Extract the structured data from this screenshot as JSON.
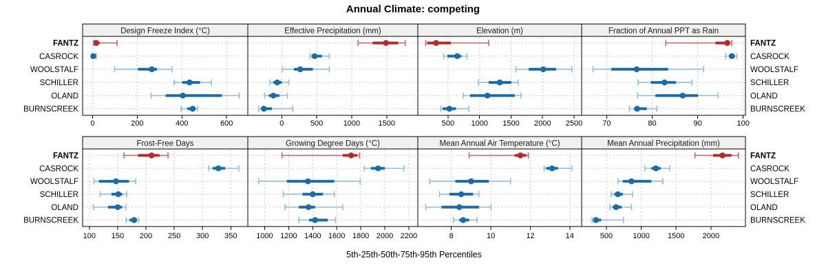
{
  "title": "Annual Climate: competing",
  "footer": "5th-25th-50th-75th-95th Percentiles",
  "colors": {
    "highlight": "#B32B2D",
    "highlight_light": "#C96868",
    "normal": "#1A6BA8",
    "normal_light": "#8FBCDF",
    "panel_header_bg": "#F0F0F0",
    "panel_border": "#000000",
    "grid": "#C9C9C9",
    "text": "#000000"
  },
  "chart_data": {
    "type": "dotplot",
    "subtype": "trellis-percentile-dotplot",
    "grid": "dashed",
    "percentile_labels": [
      "5th",
      "25th",
      "50th",
      "75th",
      "95th"
    ],
    "rows": [
      "FANTZ",
      "CASROCK",
      "WOOLSTALF",
      "SCHILLER",
      "OLAND",
      "BURNSCREEK"
    ],
    "highlighted_row": "FANTZ",
    "panels": [
      {
        "title": "Design Freeze Index (°C)",
        "xlim": [
          -45,
          695
        ],
        "ticks": [
          0,
          200,
          400,
          600
        ],
        "percentiles": [
          [
            5,
            8,
            16,
            31,
            109
          ],
          [
            -5,
            0,
            3,
            8,
            16
          ],
          [
            98,
            203,
            265,
            288,
            355
          ],
          [
            365,
            401,
            434,
            481,
            532
          ],
          [
            262,
            327,
            404,
            579,
            657
          ],
          [
            396,
            424,
            448,
            462,
            471
          ]
        ]
      },
      {
        "title": "Effective Precipitation (mm)",
        "xlim": [
          -485,
          1945
        ],
        "ticks": [
          0,
          500,
          1000,
          1500
        ],
        "percentiles": [
          [
            1090,
            1300,
            1490,
            1665,
            1765
          ],
          [
            404,
            427,
            470,
            575,
            680
          ],
          [
            10,
            175,
            265,
            445,
            680
          ],
          [
            -170,
            -120,
            -65,
            0,
            100
          ],
          [
            -245,
            -185,
            -120,
            -35,
            80
          ],
          [
            -330,
            -295,
            -255,
            -140,
            155
          ]
        ]
      },
      {
        "title": "Elevation (m)",
        "xlim": [
          20,
          2620
        ],
        "ticks": [
          500,
          1000,
          1500,
          2000,
          2500
        ],
        "percentiles": [
          [
            145,
            170,
            310,
            545,
            1145
          ],
          [
            430,
            490,
            645,
            710,
            800
          ],
          [
            1575,
            1780,
            2010,
            2215,
            2465
          ],
          [
            980,
            1145,
            1320,
            1505,
            1610
          ],
          [
            740,
            850,
            1125,
            1560,
            1655
          ],
          [
            385,
            415,
            520,
            625,
            830
          ]
        ]
      },
      {
        "title": "Fraction of Annual PPT as Rain",
        "xlim": [
          64.5,
          100.5
        ],
        "ticks": [
          70,
          80,
          90,
          100
        ],
        "percentiles": [
          [
            83,
            93.9,
            96.5,
            97.1,
            97.5
          ],
          [
            96.1,
            96.9,
            97.5,
            98.2,
            98.6
          ],
          [
            67,
            71,
            76.6,
            83.5,
            91.3
          ],
          [
            76.9,
            79.7,
            82.7,
            85.2,
            88.7
          ],
          [
            76.8,
            80.7,
            86.7,
            90.1,
            94.5
          ],
          [
            75,
            76,
            76.7,
            78.8,
            81
          ]
        ]
      },
      {
        "title": "Frost-Free Days",
        "xlim": [
          88,
          380
        ],
        "ticks": [
          100,
          150,
          200,
          250,
          300,
          350
        ],
        "percentiles": [
          [
            161,
            186,
            210,
            224,
            239
          ],
          [
            311,
            318,
            328,
            340,
            364
          ],
          [
            108,
            117,
            147,
            170,
            182
          ],
          [
            119,
            139,
            151,
            158,
            166
          ],
          [
            107,
            133,
            150,
            158,
            165
          ],
          [
            165,
            171,
            179,
            184,
            187
          ]
        ]
      },
      {
        "title": "Growing Degree Days (°C)",
        "xlim": [
          860,
          2275
        ],
        "ticks": [
          1000,
          1200,
          1400,
          1600,
          1800,
          2000,
          2200
        ],
        "percentiles": [
          [
            1145,
            1650,
            1720,
            1770,
            1790
          ],
          [
            1830,
            1885,
            1945,
            2000,
            2160
          ],
          [
            950,
            1185,
            1360,
            1580,
            1795
          ],
          [
            1155,
            1315,
            1400,
            1485,
            1580
          ],
          [
            1170,
            1285,
            1365,
            1420,
            1650
          ],
          [
            1285,
            1370,
            1420,
            1525,
            1590
          ]
        ]
      },
      {
        "title": "Mean Annual Air Temperature (°C)",
        "xlim": [
          6.3,
          14.6
        ],
        "ticks": [
          8,
          10,
          12,
          14
        ],
        "percentiles": [
          [
            8.9,
            11.2,
            11.5,
            11.8,
            11.9
          ],
          [
            12.7,
            12.8,
            13.1,
            13.4,
            14.1
          ],
          [
            6.9,
            8.2,
            9.0,
            9.9,
            11.0
          ],
          [
            7.4,
            7.9,
            8.5,
            9.1,
            9.4
          ],
          [
            6.7,
            7.5,
            8.4,
            9.4,
            10.0
          ],
          [
            8.1,
            8.4,
            8.6,
            8.9,
            9.3
          ]
        ]
      },
      {
        "title": "Mean Annual Precipitation (mm)",
        "xlim": [
          145,
          2495
        ],
        "ticks": [
          500,
          1000,
          1500,
          2000
        ],
        "percentiles": [
          [
            1770,
            2030,
            2165,
            2295,
            2395
          ],
          [
            1050,
            1145,
            1210,
            1280,
            1410
          ],
          [
            665,
            735,
            860,
            1145,
            1310
          ],
          [
            570,
            615,
            665,
            735,
            875
          ],
          [
            550,
            590,
            640,
            720,
            860
          ],
          [
            295,
            310,
            350,
            425,
            745
          ]
        ]
      }
    ]
  }
}
